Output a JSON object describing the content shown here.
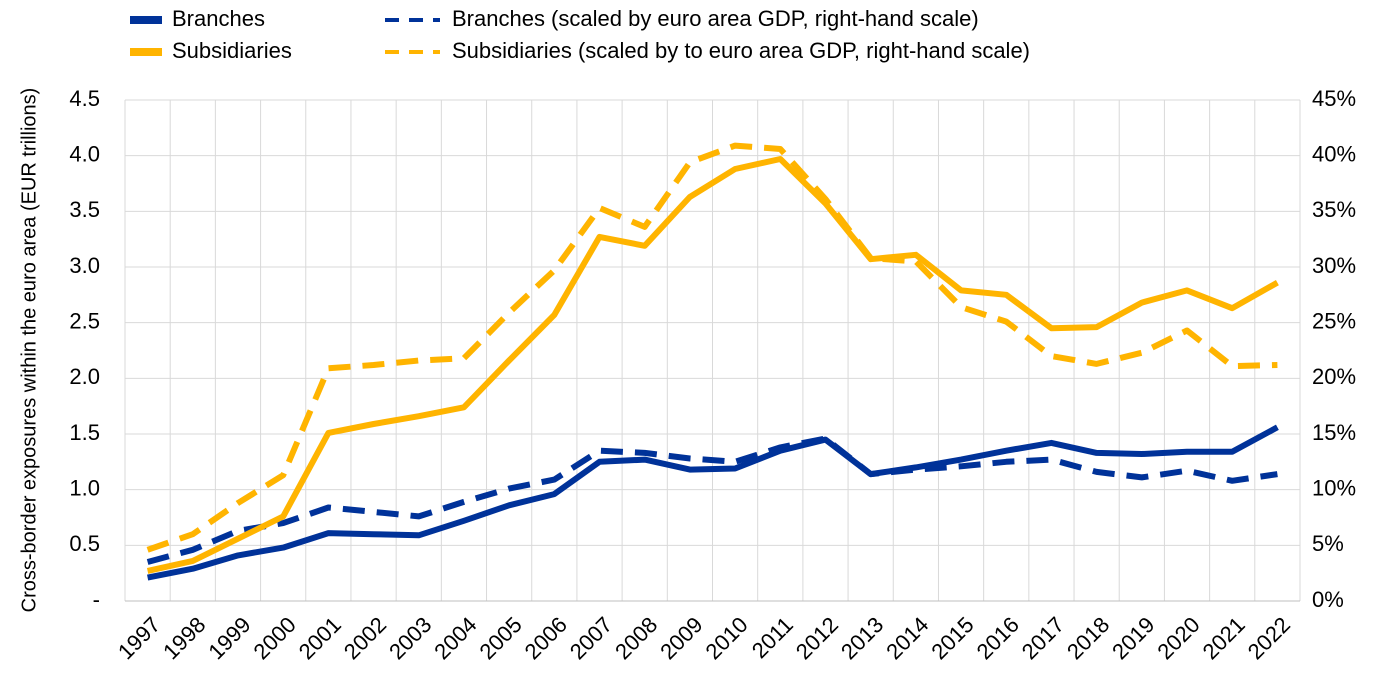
{
  "chart_data": {
    "type": "line",
    "y_label": "Cross-border exposures within the euro area (EUR trillions)",
    "categories": [
      "1997",
      "1998",
      "1999",
      "2000",
      "2001",
      "2002",
      "2003",
      "2004",
      "2005",
      "2006",
      "2007",
      "2008",
      "2009",
      "2010",
      "2011",
      "2012",
      "2013",
      "2014",
      "2015",
      "2016",
      "2017",
      "2018",
      "2019",
      "2020",
      "2021",
      "2022"
    ],
    "series": [
      {
        "name": "Branches",
        "color": "#003299",
        "linestyle": "solid",
        "values": [
          0.21,
          0.29,
          0.41,
          0.48,
          0.61,
          0.6,
          0.59,
          0.72,
          0.86,
          0.96,
          1.25,
          1.27,
          1.18,
          1.19,
          1.35,
          1.45,
          1.14,
          1.2,
          1.27,
          1.35,
          1.42,
          1.33,
          1.32,
          1.34,
          1.34,
          1.56
        ]
      },
      {
        "name": "Subsidiaries",
        "color": "#ffb400",
        "linestyle": "solid",
        "values": [
          0.27,
          0.36,
          0.56,
          0.76,
          1.51,
          1.59,
          1.66,
          1.74,
          2.16,
          2.57,
          3.27,
          3.19,
          3.63,
          3.88,
          3.97,
          3.57,
          3.07,
          3.11,
          2.79,
          2.75,
          2.45,
          2.46,
          2.68,
          2.79,
          2.63,
          2.86
        ]
      },
      {
        "name": "Branches (scaled by euro area GDP, right-hand scale)",
        "color": "#003299",
        "linestyle": "dashed",
        "axis": "y2",
        "values": [
          3.5,
          4.6,
          6.3,
          7.0,
          8.4,
          8.0,
          7.6,
          8.9,
          10.1,
          10.9,
          13.5,
          13.3,
          12.8,
          12.5,
          13.8,
          14.6,
          11.4,
          11.8,
          12.1,
          12.5,
          12.7,
          11.6,
          11.1,
          11.7,
          10.8,
          11.4
        ]
      },
      {
        "name": "Subsidiaries (scaled by to euro area GDP, right-hand scale)",
        "color": "#ffb400",
        "linestyle": "dashed",
        "axis": "y2",
        "values": [
          4.6,
          6.0,
          8.8,
          11.3,
          20.9,
          21.2,
          21.6,
          21.8,
          25.9,
          29.7,
          35.3,
          33.6,
          39.4,
          40.9,
          40.6,
          36.1,
          30.8,
          30.5,
          26.4,
          25.1,
          22.0,
          21.3,
          22.3,
          24.3,
          21.1,
          21.2
        ]
      }
    ],
    "ylim": [
      0,
      4.5
    ],
    "yticks": [
      {
        "value": 0,
        "label": "-"
      },
      0.5,
      {
        "value": 1,
        "label": "1.0"
      },
      1.5,
      {
        "value": 2,
        "label": "2.0"
      },
      2.5,
      {
        "value": 3,
        "label": "3.0"
      },
      3.5,
      {
        "value": 4,
        "label": "4.0"
      },
      4.5
    ],
    "y2lim": [
      0,
      45
    ],
    "y2ticks": [
      {
        "value": 0,
        "label": "0%"
      },
      {
        "value": 5,
        "label": "5%"
      },
      {
        "value": 10,
        "label": "10%"
      },
      {
        "value": 15,
        "label": "15%"
      },
      {
        "value": 20,
        "label": "20%"
      },
      {
        "value": 25,
        "label": "25%"
      },
      {
        "value": 30,
        "label": "30%"
      },
      {
        "value": 35,
        "label": "35%"
      },
      {
        "value": 40,
        "label": "40%"
      },
      {
        "value": 45,
        "label": "45%"
      }
    ],
    "grid": true,
    "legend": "top"
  }
}
